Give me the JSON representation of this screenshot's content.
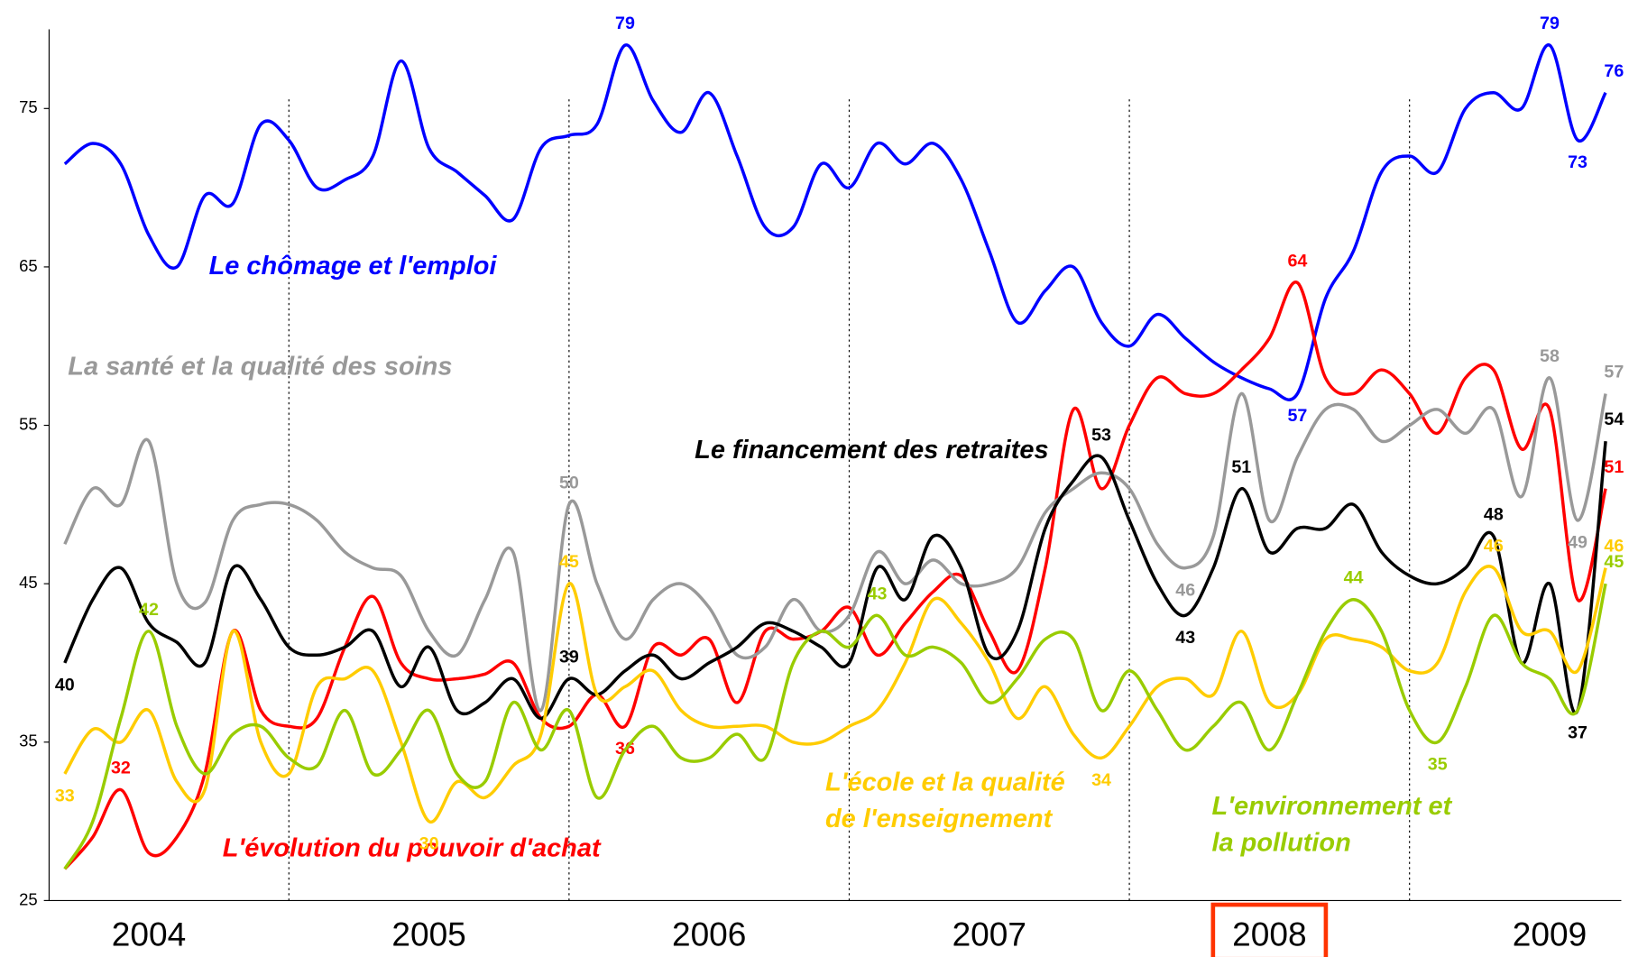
{
  "chart_data": {
    "type": "line",
    "x": [
      2004.2,
      2004.3,
      2004.4,
      2004.5,
      2004.6,
      2004.7,
      2004.8,
      2004.9,
      2005.0,
      2005.1,
      2005.2,
      2005.3,
      2005.4,
      2005.5,
      2005.6,
      2005.7,
      2005.8,
      2005.9,
      2006.0,
      2006.1,
      2006.2,
      2006.3,
      2006.4,
      2006.5,
      2006.6,
      2006.7,
      2006.8,
      2006.9,
      2007.0,
      2007.1,
      2007.2,
      2007.3,
      2007.4,
      2007.5,
      2007.6,
      2007.7,
      2007.8,
      2007.9,
      2008.0,
      2008.1,
      2008.2,
      2008.3,
      2008.4,
      2008.5,
      2008.6,
      2008.7,
      2008.8,
      2008.9,
      2009.0,
      2009.1,
      2009.2,
      2009.3,
      2009.4,
      2009.5,
      2009.6,
      2009.7
    ],
    "series": [
      {
        "name": [
          "Le chômage et l'emploi"
        ],
        "color": "#0000ff",
        "values": [
          71.5,
          72.8,
          71.5,
          67,
          65,
          69.5,
          69,
          74,
          73,
          70,
          70.5,
          72,
          78,
          72.5,
          71,
          69.5,
          68,
          72.5,
          73.3,
          74,
          79,
          75.5,
          73.5,
          76,
          72,
          67.5,
          67.5,
          71.5,
          70,
          72.8,
          71.5,
          72.8,
          70.5,
          66,
          61.5,
          63.5,
          65,
          61.5,
          60,
          62,
          60.5,
          59,
          58,
          57.3,
          57,
          63,
          66,
          71,
          72,
          71,
          75,
          76,
          75,
          79,
          73,
          76
        ],
        "labels_at": [
          20,
          44,
          53,
          54,
          55
        ]
      },
      {
        "name": [
          "L'évolution du pouvoir d'achat"
        ],
        "color": "#ff0000",
        "values": [
          27,
          29,
          32,
          28,
          29,
          33,
          42,
          37,
          36,
          36.5,
          41,
          44.2,
          40,
          39,
          39,
          39.3,
          40,
          36.5,
          36,
          38,
          36,
          41,
          40.5,
          41.5,
          37.5,
          42,
          41.5,
          42,
          43.5,
          40.5,
          42.5,
          44.5,
          45.5,
          42,
          39.5,
          46,
          56,
          51,
          55,
          58,
          57,
          57,
          58.5,
          60.5,
          64,
          58,
          57,
          58.5,
          57,
          54.5,
          58,
          58.5,
          53.5,
          56,
          44,
          51
        ],
        "labels_at": [
          2,
          20,
          44,
          55
        ]
      },
      {
        "name": [
          "La santé et la qualité des soins"
        ],
        "color": "#999999",
        "values": [
          47.5,
          51,
          50,
          54,
          45,
          43.8,
          49,
          50,
          50,
          49,
          47,
          46,
          45.5,
          42,
          40.5,
          44,
          47,
          37,
          50,
          45,
          41.5,
          44,
          45,
          43.5,
          40.5,
          41,
          44,
          42,
          43,
          47,
          45,
          46.5,
          45,
          45,
          46,
          49.5,
          51,
          52,
          51,
          47.5,
          46,
          48,
          57,
          49,
          53,
          56,
          56,
          54,
          55,
          56,
          54.5,
          56,
          50.5,
          58,
          49,
          57
        ],
        "labels_at": [
          18,
          40,
          53,
          54,
          55
        ]
      },
      {
        "name": [
          "Le financement des retraites"
        ],
        "color": "#000000",
        "values": [
          40,
          44,
          46,
          42.5,
          41.3,
          40,
          46,
          44,
          41,
          40.5,
          41,
          42,
          38.5,
          41,
          37,
          37.5,
          39,
          36.5,
          39,
          38,
          39.5,
          40.5,
          39,
          40,
          41,
          42.5,
          42,
          41,
          40,
          46,
          44,
          48,
          46,
          40.5,
          42,
          48.5,
          51.5,
          53,
          49,
          45,
          43,
          46,
          51,
          47,
          48.5,
          48.5,
          50,
          47,
          45.5,
          45,
          46,
          48,
          40,
          45,
          37,
          54
        ],
        "labels_at": [
          0,
          18,
          37,
          40,
          42,
          51,
          54,
          55
        ]
      },
      {
        "name": [
          "L'école et la qualité",
          "de l'enseignement"
        ],
        "color": "#ffcc00",
        "values": [
          33,
          35.8,
          35,
          37,
          32.5,
          32,
          42,
          35,
          33,
          38.5,
          39,
          39.5,
          35,
          30,
          32.5,
          31.5,
          33.5,
          35.5,
          45,
          38,
          38.5,
          39.5,
          37,
          36,
          36,
          36,
          35,
          35,
          36,
          37,
          40,
          44,
          42.5,
          40,
          36.5,
          38.5,
          35.5,
          34,
          36,
          38.5,
          39,
          38,
          42,
          37.5,
          38,
          41.5,
          41.5,
          41,
          39.5,
          40,
          44.5,
          46,
          42,
          42,
          39.5,
          46
        ],
        "labels_at": [
          0,
          13,
          18,
          37,
          51,
          55
        ]
      },
      {
        "name": [
          "L'environnement et",
          "la pollution"
        ],
        "color": "#99cc00",
        "values": [
          27,
          30,
          36.5,
          42,
          36,
          33,
          35.5,
          36,
          34,
          33.5,
          37,
          33,
          34.5,
          37,
          33,
          32.5,
          37.5,
          34.5,
          37,
          31.5,
          34.5,
          36,
          34,
          34,
          35.5,
          34,
          40,
          42,
          41,
          43,
          40.5,
          41,
          40,
          37.5,
          39,
          41.5,
          41.5,
          37,
          39.5,
          37,
          34.5,
          36,
          37.5,
          34.5,
          38,
          42,
          44,
          42,
          37,
          35,
          38.5,
          43,
          40,
          39,
          37,
          45
        ],
        "labels_at": [
          3,
          29,
          46,
          49,
          55
        ]
      }
    ],
    "xlim": [
      2004.2,
      2009.7
    ],
    "xticks": [
      {
        "value": 2004.5,
        "label": "2004"
      },
      {
        "value": 2005.5,
        "label": "2005"
      },
      {
        "value": 2006.5,
        "label": "2006"
      },
      {
        "value": 2007.5,
        "label": "2007"
      },
      {
        "value": 2008.5,
        "label": "2008"
      },
      {
        "value": 2009.5,
        "label": "2009"
      }
    ],
    "highlight_tick": 4,
    "vlines": [
      2005,
      2006,
      2007,
      2008,
      2009
    ],
    "ylim": [
      25,
      80
    ],
    "yticks": [
      25,
      35,
      45,
      55,
      65,
      75
    ]
  }
}
